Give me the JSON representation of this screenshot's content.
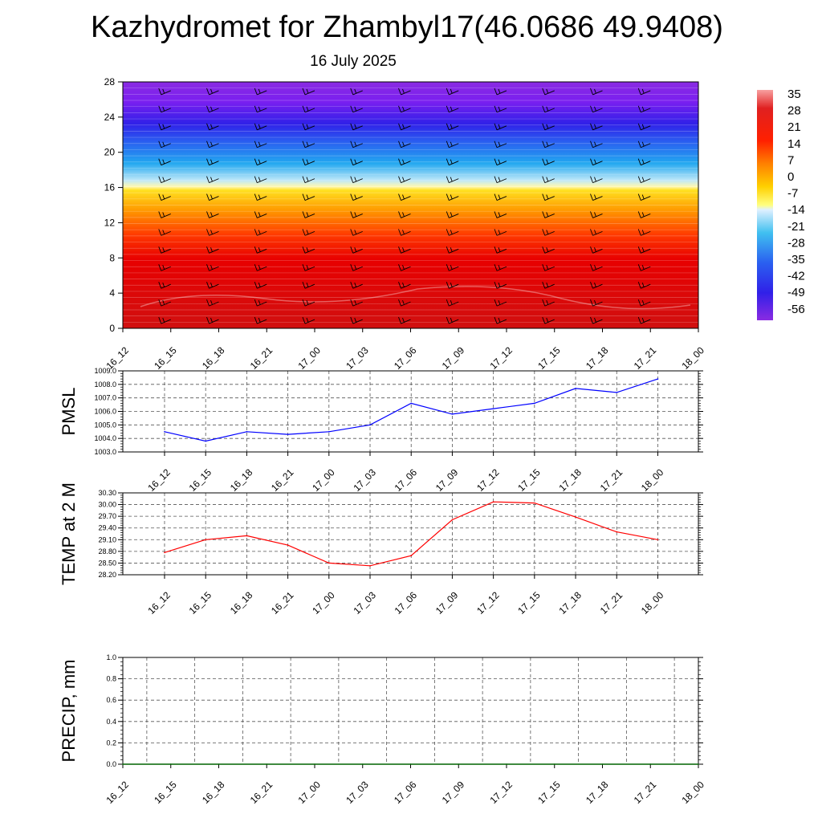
{
  "title": "Kazhydromet for Zhambyl17(46.0686 49.9408)",
  "subtitle": "16 July 2025",
  "time_labels": [
    "16_12",
    "16_15",
    "16_18",
    "16_21",
    "17_00",
    "17_03",
    "17_06",
    "17_09",
    "17_12",
    "17_15",
    "17_18",
    "17_21",
    "18_00"
  ],
  "colorbar": {
    "labels": [
      "35",
      "28",
      "21",
      "14",
      "7",
      "0",
      "-7",
      "-14",
      "-21",
      "-28",
      "-35",
      "-42",
      "-49",
      "-56"
    ]
  },
  "chart_data": [
    {
      "type": "heatmap",
      "description_key": "vertical profile",
      "y_ticks": [
        0,
        4,
        8,
        12,
        16,
        20,
        24,
        28
      ],
      "ylim": [
        0,
        28
      ],
      "x_categories": [
        "16_12",
        "16_15",
        "16_18",
        "16_21",
        "17_00",
        "17_03",
        "17_06",
        "17_09",
        "17_12",
        "17_15",
        "17_18",
        "17_21",
        "18_00"
      ],
      "color_scale_range": [
        -56,
        35
      ]
    },
    {
      "type": "line",
      "ylabel": "PMSL",
      "categories": [
        "16_12",
        "16_15",
        "16_18",
        "16_21",
        "17_00",
        "17_03",
        "17_06",
        "17_09",
        "17_12",
        "17_15",
        "17_18",
        "17_21",
        "18_00"
      ],
      "values": [
        1004.5,
        1003.8,
        1004.5,
        1004.3,
        1004.5,
        1005.0,
        1006.6,
        1005.8,
        1006.2,
        1006.6,
        1007.7,
        1007.4,
        1008.4
      ],
      "ylim": [
        1003.0,
        1009.0
      ],
      "y_ticks": [
        "1003.0",
        "1004.0",
        "1005.0",
        "1006.0",
        "1007.0",
        "1008.0",
        "1009.0"
      ],
      "line_color": "#0000ff"
    },
    {
      "type": "line",
      "ylabel": "TEMP at 2 M",
      "categories": [
        "16_12",
        "16_15",
        "16_18",
        "16_21",
        "17_00",
        "17_03",
        "17_06",
        "17_09",
        "17_12",
        "17_15",
        "17_18",
        "17_21",
        "18_00"
      ],
      "values": [
        28.77,
        29.1,
        29.2,
        28.96,
        28.5,
        28.43,
        28.69,
        29.61,
        30.07,
        30.04,
        29.68,
        29.3,
        29.1
      ],
      "ylim": [
        28.2,
        30.3
      ],
      "y_ticks": [
        "28.20",
        "28.50",
        "28.80",
        "29.10",
        "29.40",
        "29.70",
        "30.00",
        "30.30"
      ],
      "line_color": "#ff0000"
    },
    {
      "type": "line",
      "ylabel": "PRECIP, mm",
      "categories": [
        "16_12",
        "16_15",
        "16_18",
        "16_21",
        "17_00",
        "17_03",
        "17_06",
        "17_09",
        "17_12",
        "17_15",
        "17_18",
        "17_21",
        "18_00"
      ],
      "values": [
        0,
        0,
        0,
        0,
        0,
        0,
        0,
        0,
        0,
        0,
        0,
        0,
        0
      ],
      "ylim": [
        0.0,
        1.0
      ],
      "y_ticks": [
        "0.0",
        "0.2",
        "0.4",
        "0.6",
        "0.8",
        "1.0"
      ],
      "line_color": "#006400"
    }
  ]
}
